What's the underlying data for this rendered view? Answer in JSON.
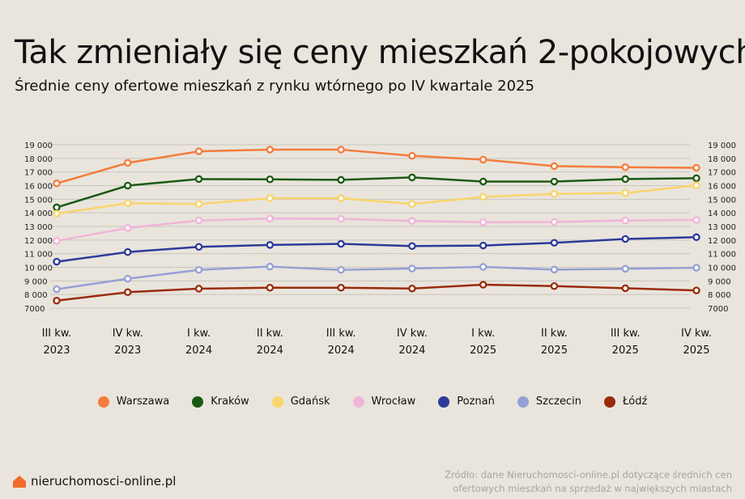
{
  "title": "Tak zmieniały się ceny mieszkań 2-pokojowych",
  "subtitle": "Średnie ceny ofertowe mieszkań z rynku wtórnego po IV kwartale 2025",
  "chart_data": {
    "type": "line",
    "title": "Tak zmieniały się ceny mieszkań 2-pokojowych",
    "subtitle": "Średnie ceny ofertowe mieszkań z rynku wtórnego po IV kwartale 2025",
    "categories": [
      [
        "III kw.",
        "2023"
      ],
      [
        "IV kw.",
        "2023"
      ],
      [
        "I kw.",
        "2024"
      ],
      [
        "II kw.",
        "2024"
      ],
      [
        "III kw.",
        "2024"
      ],
      [
        "IV kw.",
        "2024"
      ],
      [
        "I kw.",
        "2025"
      ],
      [
        "II kw.",
        "2025"
      ],
      [
        "III kw.",
        "2025"
      ],
      [
        "IV kw.",
        "2025"
      ]
    ],
    "yticks": [
      7000,
      8000,
      9000,
      10000,
      11000,
      12000,
      13000,
      14000,
      15000,
      16000,
      17000,
      18000,
      19000
    ],
    "ytick_labels": [
      "7000",
      "8 000",
      "9 000",
      "10 000",
      "11 000",
      "12 000",
      "13 000",
      "14 000",
      "15 000",
      "16 000",
      "17 000",
      "18 000",
      "19 000"
    ],
    "ylim": [
      7000,
      19000
    ],
    "grid": true,
    "legend_position": "bottom",
    "series": [
      {
        "name": "Warszawa",
        "color": "#f47c3c",
        "values": [
          16160,
          17670,
          18520,
          18640,
          18640,
          18190,
          17910,
          17430,
          17350,
          17310
        ]
      },
      {
        "name": "Kraków",
        "color": "#1b5a12",
        "values": [
          14400,
          16000,
          16480,
          16460,
          16420,
          16600,
          16300,
          16300,
          16480,
          16540
        ]
      },
      {
        "name": "Gdańsk",
        "color": "#f8d46c",
        "values": [
          13940,
          14710,
          14650,
          15070,
          15070,
          14650,
          15170,
          15390,
          15450,
          16020
        ]
      },
      {
        "name": "Wrocław",
        "color": "#f1b4d9",
        "values": [
          11940,
          12890,
          13440,
          13580,
          13560,
          13400,
          13310,
          13330,
          13440,
          13480
        ]
      },
      {
        "name": "Poznań",
        "color": "#2d3a99",
        "values": [
          10410,
          11120,
          11500,
          11640,
          11720,
          11560,
          11600,
          11800,
          12080,
          12210
        ]
      },
      {
        "name": "Szczecin",
        "color": "#96a0d4",
        "values": [
          8390,
          9160,
          9810,
          10050,
          9810,
          9910,
          10030,
          9830,
          9890,
          9970
        ]
      },
      {
        "name": "Łódź",
        "color": "#9a2b0b",
        "values": [
          7550,
          8170,
          8430,
          8500,
          8500,
          8440,
          8720,
          8620,
          8460,
          8300
        ]
      }
    ]
  },
  "footer": {
    "logo_text": "nieruchomosci-online.pl",
    "logo_color": "#f26b2a",
    "source_line1": "Źródło: dane Nieruchomosci-online.pl dotyczące średnich cen",
    "source_line2": "ofertowych mieszkań na sprzedaż w największych miastach"
  }
}
